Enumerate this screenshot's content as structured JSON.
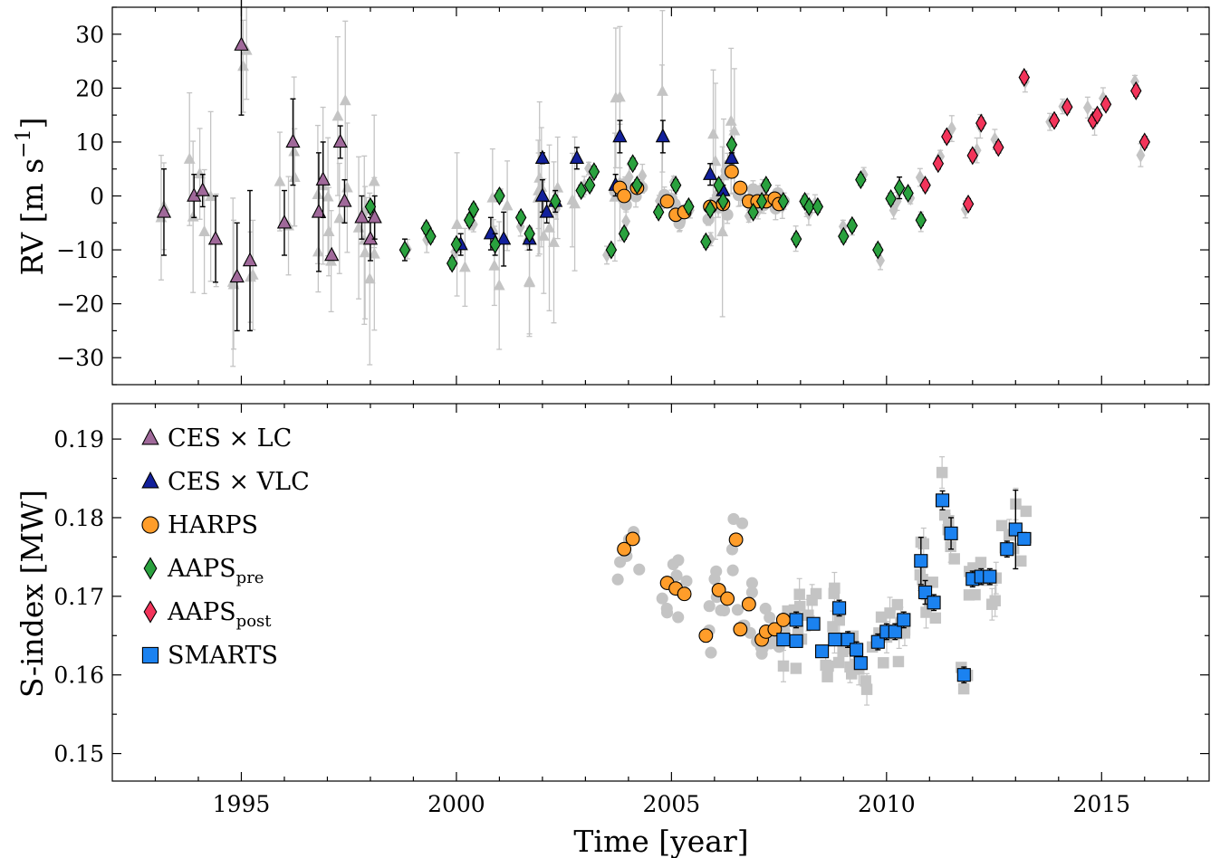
{
  "chart_data": [
    {
      "type": "scatter",
      "panel": "top",
      "ylabel": "RV [m s⁻¹]",
      "ylabel_main": "RV [m s",
      "ylabel_sup": "−1",
      "ylabel_close": "]",
      "xlim": [
        1992.0,
        2017.5
      ],
      "ylim": [
        -35,
        35
      ],
      "yticks": [
        -30,
        -20,
        -10,
        0,
        10,
        20,
        30
      ],
      "ytick_labels": [
        "−30",
        "−20",
        "−10",
        "0",
        "10",
        "20",
        "30"
      ],
      "series": [
        {
          "name": "CES × LC",
          "marker": "triangle",
          "color": "#a0699a",
          "points": [
            [
              1993.2,
              -3,
              8
            ],
            [
              1993.9,
              0,
              4
            ],
            [
              1994.1,
              1,
              3
            ],
            [
              1994.4,
              -8,
              8
            ],
            [
              1994.9,
              -15,
              10
            ],
            [
              1995.0,
              28,
              13
            ],
            [
              1995.2,
              -12,
              13
            ],
            [
              1996.0,
              -5,
              6
            ],
            [
              1996.2,
              10,
              8
            ],
            [
              1996.8,
              -3,
              11
            ],
            [
              1996.9,
              3,
              7
            ],
            [
              1997.1,
              -11,
              0
            ],
            [
              1997.3,
              10,
              3
            ],
            [
              1997.4,
              -1,
              4
            ],
            [
              1997.8,
              -4,
              4
            ],
            [
              1998.0,
              -8,
              4
            ],
            [
              1998.1,
              -4,
              4
            ]
          ]
        },
        {
          "name": "CES × VLC",
          "marker": "triangle",
          "color": "#12209b",
          "points": [
            [
              2000.1,
              -9,
              2
            ],
            [
              2000.8,
              -7,
              3
            ],
            [
              2001.1,
              -8,
              5
            ],
            [
              2001.7,
              -8,
              2
            ],
            [
              2002.0,
              7,
              1
            ],
            [
              2002.0,
              0,
              3
            ],
            [
              2002.1,
              -3,
              2
            ],
            [
              2002.3,
              -1,
              2
            ],
            [
              2002.8,
              7,
              2
            ],
            [
              2003.7,
              2,
              2
            ],
            [
              2003.8,
              11,
              3
            ],
            [
              2004.8,
              11,
              3
            ],
            [
              2005.9,
              4,
              2
            ],
            [
              2006.2,
              1,
              1
            ],
            [
              2006.4,
              7,
              1
            ]
          ]
        },
        {
          "name": "HARPS",
          "marker": "circle",
          "color": "#ff9d2a",
          "points": [
            [
              2003.8,
              1.5,
              1
            ],
            [
              2003.9,
              0,
              1
            ],
            [
              2004.2,
              1.5,
              1
            ],
            [
              2004.9,
              -1,
              1
            ],
            [
              2005.1,
              -3.5,
              1
            ],
            [
              2005.3,
              -3,
              1
            ],
            [
              2005.9,
              -2,
              1
            ],
            [
              2006.2,
              -1.5,
              1
            ],
            [
              2006.4,
              4.5,
              1
            ],
            [
              2006.6,
              1.5,
              1
            ],
            [
              2006.8,
              -1,
              1
            ],
            [
              2007.0,
              -1,
              1
            ],
            [
              2007.2,
              -1,
              1
            ],
            [
              2007.4,
              -0.5,
              1
            ],
            [
              2007.5,
              -1.5,
              1
            ]
          ]
        },
        {
          "name": "AAPS",
          "name_sub": "pre",
          "marker": "diamond",
          "color": "#2aa13e",
          "points": [
            [
              1998.0,
              -2,
              1
            ],
            [
              1998.8,
              -10,
              2
            ],
            [
              1999.3,
              -6,
              1
            ],
            [
              1999.4,
              -7.5,
              1
            ],
            [
              1999.9,
              -12.5,
              1
            ],
            [
              2000.0,
              -9,
              1
            ],
            [
              2000.3,
              -4.5,
              1
            ],
            [
              2000.4,
              -2.5,
              1
            ],
            [
              2000.9,
              -9,
              2
            ],
            [
              2001.0,
              0,
              1
            ],
            [
              2001.5,
              -4,
              1
            ],
            [
              2001.7,
              -7,
              1
            ],
            [
              2002.3,
              -1,
              1
            ],
            [
              2002.9,
              1,
              1
            ],
            [
              2003.1,
              2,
              1
            ],
            [
              2003.2,
              4.5,
              1
            ],
            [
              2003.6,
              -10,
              1
            ],
            [
              2003.9,
              -7,
              1
            ],
            [
              2004.1,
              6,
              1
            ],
            [
              2004.2,
              2,
              1
            ],
            [
              2004.7,
              -3,
              1
            ],
            [
              2005.1,
              2,
              1
            ],
            [
              2005.4,
              -2,
              1
            ],
            [
              2005.8,
              -8.5,
              1
            ],
            [
              2005.9,
              -2.5,
              1
            ],
            [
              2006.1,
              2,
              1
            ],
            [
              2006.2,
              -1,
              1
            ],
            [
              2006.4,
              9.5,
              1
            ],
            [
              2006.9,
              -3,
              1
            ],
            [
              2007.1,
              -1,
              1
            ],
            [
              2007.2,
              2,
              1
            ],
            [
              2007.6,
              -1,
              1
            ],
            [
              2007.9,
              -8,
              1
            ],
            [
              2008.1,
              -1,
              1
            ],
            [
              2008.2,
              -2,
              1
            ],
            [
              2008.4,
              -2,
              1
            ],
            [
              2009.0,
              -7.5,
              1
            ],
            [
              2009.2,
              -5.5,
              1
            ],
            [
              2009.4,
              3,
              1
            ],
            [
              2009.8,
              -10,
              1
            ],
            [
              2010.1,
              -0.5,
              1
            ],
            [
              2010.3,
              1.5,
              2
            ],
            [
              2010.5,
              0.5,
              1
            ],
            [
              2010.8,
              -4.5,
              1
            ]
          ]
        },
        {
          "name": "AAPS",
          "name_sub": "post",
          "marker": "diamond",
          "color": "#f2345a",
          "points": [
            [
              2010.9,
              2,
              1
            ],
            [
              2011.2,
              6,
              1
            ],
            [
              2011.4,
              11,
              1
            ],
            [
              2011.9,
              -1.5,
              1
            ],
            [
              2012.0,
              7.5,
              1
            ],
            [
              2012.2,
              13.5,
              1
            ],
            [
              2012.6,
              9,
              1
            ],
            [
              2013.2,
              22,
              1
            ],
            [
              2013.9,
              14,
              1
            ],
            [
              2014.2,
              16.5,
              1
            ],
            [
              2014.8,
              14,
              1
            ],
            [
              2014.9,
              15,
              1
            ],
            [
              2015.1,
              17,
              1
            ],
            [
              2015.8,
              19.5,
              1
            ],
            [
              2016.0,
              10,
              1
            ]
          ]
        }
      ]
    },
    {
      "type": "scatter",
      "panel": "bottom",
      "xlabel": "Time [year]",
      "ylabel": "S-index [MW]",
      "xlim": [
        1992.0,
        2017.5
      ],
      "ylim": [
        0.1465,
        0.1945
      ],
      "xticks": [
        1995,
        2000,
        2005,
        2010,
        2015
      ],
      "xtick_labels": [
        "1995",
        "2000",
        "2005",
        "2010",
        "2015"
      ],
      "yticks": [
        0.15,
        0.16,
        0.17,
        0.18,
        0.19
      ],
      "ytick_labels": [
        "0.15",
        "0.16",
        "0.17",
        "0.18",
        "0.19"
      ],
      "legend_position": "upper-left",
      "series": [
        {
          "name": "HARPS",
          "marker": "circle",
          "color": "#ff9d2a",
          "points": [
            [
              2003.9,
              0.176,
              0
            ],
            [
              2004.1,
              0.1773,
              0
            ],
            [
              2004.9,
              0.1717,
              0
            ],
            [
              2005.1,
              0.171,
              0
            ],
            [
              2005.3,
              0.1703,
              0
            ],
            [
              2005.8,
              0.165,
              0.0008
            ],
            [
              2006.1,
              0.1708,
              0
            ],
            [
              2006.3,
              0.1697,
              0
            ],
            [
              2006.5,
              0.1772,
              0
            ],
            [
              2006.6,
              0.1658,
              0
            ],
            [
              2006.8,
              0.169,
              0.0008
            ],
            [
              2007.1,
              0.1645,
              0
            ],
            [
              2007.2,
              0.1655,
              0
            ],
            [
              2007.4,
              0.1658,
              0
            ],
            [
              2007.6,
              0.167,
              0
            ]
          ]
        },
        {
          "name": "SMARTS",
          "marker": "square",
          "color": "#1b82f0",
          "points": [
            [
              2007.6,
              0.1645,
              0.0006
            ],
            [
              2007.9,
              0.1643,
              0.0006
            ],
            [
              2007.9,
              0.167,
              0.001
            ],
            [
              2008.3,
              0.1665,
              0.0007
            ],
            [
              2008.5,
              0.163,
              0.0006
            ],
            [
              2008.8,
              0.1645,
              0.0006
            ],
            [
              2008.9,
              0.1685,
              0.001
            ],
            [
              2009.1,
              0.1645,
              0.001
            ],
            [
              2009.3,
              0.1632,
              0.001
            ],
            [
              2009.4,
              0.1615,
              0.0007
            ],
            [
              2009.8,
              0.1642,
              0.001
            ],
            [
              2010.0,
              0.1655,
              0.001
            ],
            [
              2010.2,
              0.1655,
              0.001
            ],
            [
              2010.4,
              0.167,
              0.001
            ],
            [
              2010.8,
              0.1745,
              0.003
            ],
            [
              2010.9,
              0.1705,
              0.0015
            ],
            [
              2011.1,
              0.1692,
              0.001
            ],
            [
              2011.3,
              0.1822,
              0.0012
            ],
            [
              2011.5,
              0.178,
              0.002
            ],
            [
              2011.8,
              0.16,
              0.001
            ],
            [
              2012.0,
              0.1722,
              0.001
            ],
            [
              2012.2,
              0.1725,
              0.001
            ],
            [
              2012.4,
              0.1725,
              0.001
            ],
            [
              2012.8,
              0.176,
              0.001
            ],
            [
              2013.0,
              0.1785,
              0.005
            ],
            [
              2013.2,
              0.1773,
              0.0008
            ]
          ]
        }
      ]
    }
  ]
}
